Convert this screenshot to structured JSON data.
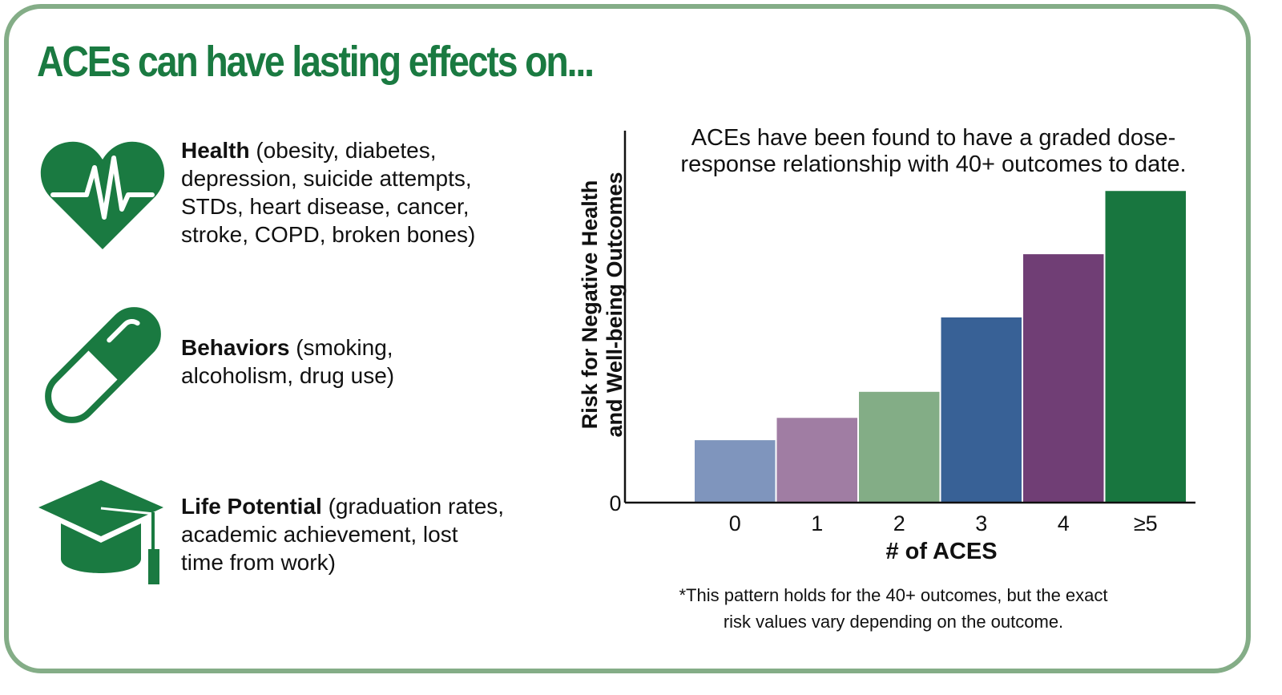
{
  "title": "ACEs can have lasting effects on...",
  "effects": [
    {
      "heading": "Health",
      "detail_lines": [
        "(obesity, diabetes,",
        "depression, suicide attempts,",
        "STDs, heart disease, cancer,",
        "stroke, COPD, broken bones)"
      ],
      "icon": "heart-pulse-icon"
    },
    {
      "heading": "Behaviors",
      "detail_lines": [
        "(smoking,",
        "alcoholism, drug use)"
      ],
      "icon": "pill-capsule-icon"
    },
    {
      "heading": "Life Potential",
      "detail_lines": [
        "(graduation rates,",
        "academic achievement, lost",
        "time from work)"
      ],
      "icon": "graduation-cap-icon"
    }
  ],
  "chart_title_lines": [
    "ACEs have been found to have a graded dose-",
    "response relationship with 40+ outcomes to date."
  ],
  "footnote_lines": [
    "*This pattern holds for the 40+ outcomes, but the exact",
    "risk values vary depending on the outcome."
  ],
  "colors": {
    "brand_green": "#1a7a41",
    "frame_green": "#84ad87"
  },
  "chart_data": {
    "type": "bar",
    "title": "ACEs have been found to have a graded dose-response relationship with 40+ outcomes to date.",
    "xlabel": "# of ACES",
    "ylabel": "Risk for Negative Health and Well-being Outcomes",
    "ylabel_lines": [
      "Risk for Negative Health",
      "and Well-being Outcomes"
    ],
    "y_tick_label": "0",
    "categories": [
      "0",
      "1",
      "2",
      "3",
      "4",
      "≥5"
    ],
    "values": [
      17,
      23,
      30,
      50,
      67,
      84
    ],
    "ylim": [
      0,
      100
    ],
    "bar_colors": [
      "#7f95bd",
      "#a07da3",
      "#83ad86",
      "#386196",
      "#703e75",
      "#18763f"
    ],
    "grid": false
  }
}
